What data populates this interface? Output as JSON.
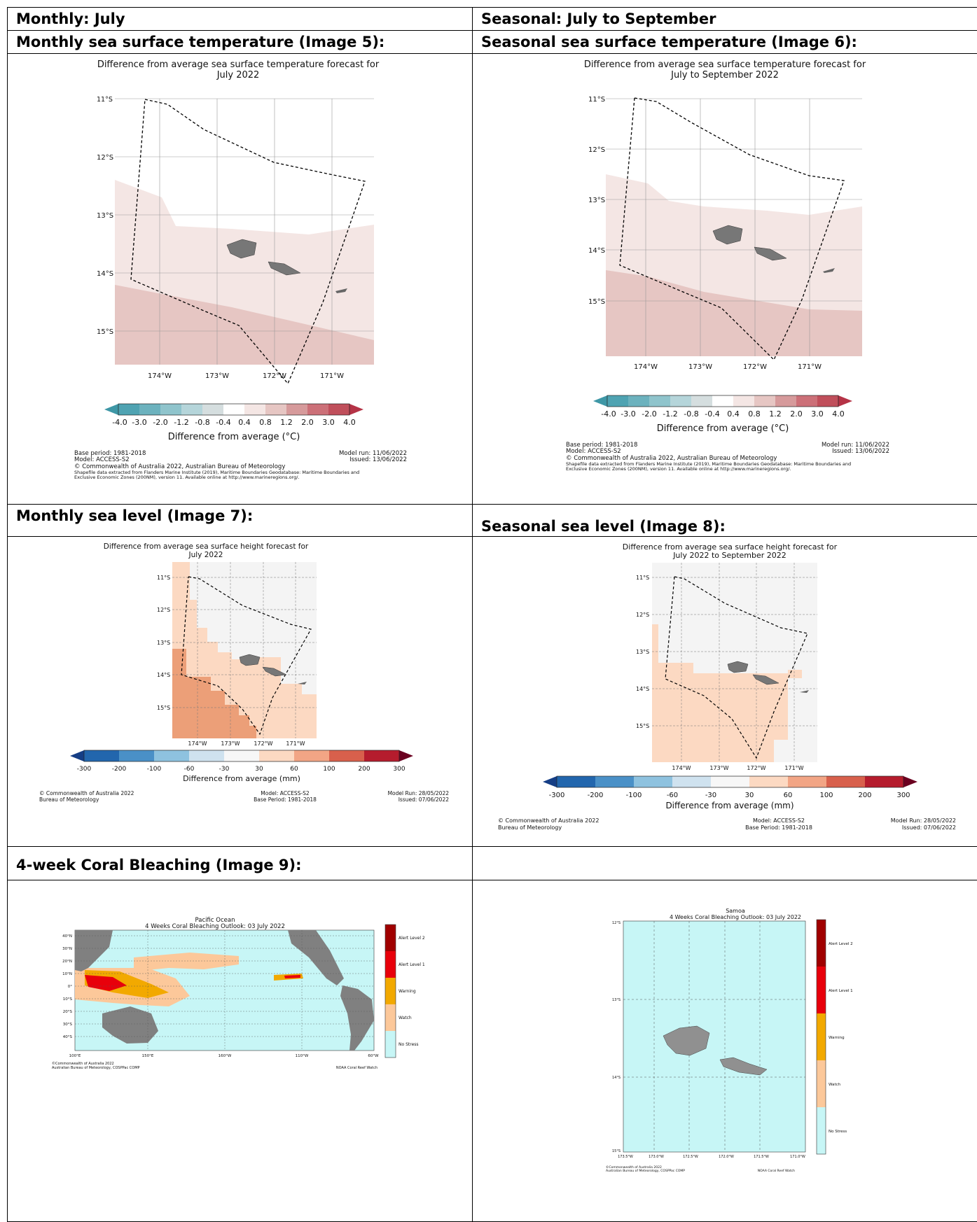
{
  "table": {
    "col1_header": "Monthly: July",
    "col2_header": "Seasonal: July to September",
    "sst_month_label": "Monthly sea surface temperature (Image 5):",
    "sst_season_label": "Seasonal sea surface temperature (Image 6):",
    "sl_month_label": "Monthly sea level (Image 7):",
    "sl_season_label": "Seasonal sea level (Image 8):",
    "coral_label": "4-week Coral Bleaching (Image 9):"
  },
  "image5": {
    "title_line1": "Difference from average sea surface temperature forecast for",
    "title_line2": "July 2022",
    "lat_labels": [
      "11°S",
      "12°S",
      "13°S",
      "14°S",
      "15°S"
    ],
    "lon_labels": [
      "174°W",
      "173°W",
      "172°W",
      "171°W"
    ],
    "colorbar_ticks": [
      "-4.0",
      "-3.0",
      "-2.0",
      "-1.2",
      "-0.8",
      "-0.4",
      "0.4",
      "0.8",
      "1.2",
      "2.0",
      "3.0",
      "4.0"
    ],
    "colorbar_label": "Difference from average (°C)",
    "base_period": "Base period: 1981-2018",
    "model": "Model: ACCESS-S2",
    "model_run": "Model run: 11/06/2022",
    "issued": "Issued: 13/06/2022",
    "copyright": "© Commonwealth of Australia 2022, Australian Bureau of Meteorology",
    "shapefile1": "Shapefile data extracted from Flanders Marine Institute (2019), Maritime Boundaries Geodatabase: Maritime Boundaries and",
    "shapefile2": "Exclusive Economic Zones (200NM), version 11. Available online at http://www.marineregions.org/."
  },
  "image6": {
    "title_line1": "Difference from average sea surface temperature forecast for",
    "title_line2": "July to September 2022",
    "lat_labels": [
      "11°S",
      "12°S",
      "13°S",
      "14°S",
      "15°S"
    ],
    "lon_labels": [
      "174°W",
      "173°W",
      "172°W",
      "171°W"
    ],
    "colorbar_ticks": [
      "-4.0",
      "-3.0",
      "-2.0",
      "-1.2",
      "-0.8",
      "-0.4",
      "0.4",
      "0.8",
      "1.2",
      "2.0",
      "3.0",
      "4.0"
    ],
    "colorbar_label": "Difference from average (°C)",
    "base_period": "Base period: 1981-2018",
    "model": "Model: ACCESS-S2",
    "model_run": "Model run: 11/06/2022",
    "issued": "Issued: 13/06/2022",
    "copyright": "© Commonwealth of Australia 2022, Australian Bureau of Meteorology",
    "shapefile1": "Shapefile data extracted from Flanders Marine Institute (2019), Maritime Boundaries Geodatabase: Maritime Boundaries and",
    "shapefile2": "Exclusive Economic Zones (200NM), version 11. Available online at http://www.marineregions.org/."
  },
  "image7": {
    "title_line1": "Difference from average sea surface height forecast for",
    "title_line2": "July 2022",
    "lat_labels": [
      "11°S",
      "12°S",
      "13°S",
      "14°S",
      "15°S"
    ],
    "lon_labels": [
      "174°W",
      "173°W",
      "172°W",
      "171°W"
    ],
    "colorbar_ticks": [
      "-300",
      "-200",
      "-100",
      "-60",
      "-30",
      "30",
      "60",
      "100",
      "200",
      "300"
    ],
    "colorbar_label": "Difference from average (mm)",
    "copyright1": "© Commonwealth of Australia 2022",
    "copyright2": "Bureau of Meteorology",
    "model": "Model: ACCESS-S2",
    "base_period": "Base Period: 1981-2018",
    "model_run": "Model Run: 28/05/2022",
    "issued": "Issued: 07/06/2022"
  },
  "image8": {
    "title_line1": "Difference from average sea surface height forecast for",
    "title_line2": "July 2022 to September 2022",
    "lat_labels": [
      "11°S",
      "12°S",
      "13°S",
      "14°S",
      "15°S"
    ],
    "lon_labels": [
      "174°W",
      "173°W",
      "172°W",
      "171°W"
    ],
    "colorbar_ticks": [
      "-300",
      "-200",
      "-100",
      "-60",
      "-30",
      "30",
      "60",
      "100",
      "200",
      "300"
    ],
    "colorbar_label": "Difference from average (mm)",
    "copyright1": "© Commonwealth of Australia 2022",
    "copyright2": "Bureau of Meteorology",
    "model": "Model: ACCESS-S2",
    "base_period": "Base Period: 1981-2018",
    "model_run": "Model Run: 28/05/2022",
    "issued": "Issued: 07/06/2022"
  },
  "image9a": {
    "title_line1": "Pacific Ocean",
    "title_line2": "4 Weeks Coral Bleaching Outlook: 03 July 2022",
    "lat_labels": [
      "40°N",
      "30°N",
      "20°N",
      "10°N",
      "0°",
      "10°S",
      "20°S",
      "30°S",
      "40°S"
    ],
    "lon_labels": [
      "100°E",
      "150°E",
      "160°W",
      "110°W",
      "60°W"
    ],
    "legend": [
      "Alert Level 2",
      "Alert Level 1",
      "Warning",
      "Watch",
      "No Stress"
    ],
    "credit1": "©Commonwealth of Australia 2022",
    "credit2": "Australian Bureau of Meteorology, COSPPac COMP",
    "credit3": "NOAA Coral Reef Watch"
  },
  "image9b": {
    "title_line1": "Samoa",
    "title_line2": "4 Weeks Coral Bleaching Outlook: 03 July 2022",
    "lat_labels": [
      "12°S",
      "13°S",
      "14°S",
      "15°S"
    ],
    "lon_labels": [
      "173.5°W",
      "173.0°W",
      "172.5°W",
      "172.0°W",
      "171.5°W",
      "171.0°W"
    ],
    "legend": [
      "Alert Level 2",
      "Alert Level 1",
      "Warning",
      "Watch",
      "No Stress"
    ],
    "credit1": "©Commonwealth of Australia 2022",
    "credit2": "Australian Bureau of Meteorology, COSPPac COMP",
    "credit3": "NOAA Coral Reef Watch"
  },
  "colors": {
    "sst_light": "#f4e6e4",
    "sst_mid": "#e6c6c3",
    "sl_light": "#fcd9c2",
    "sl_mid": "#ec9f78",
    "sl_grey": "#f4f4f4",
    "land": "#808080",
    "coral_sea": "#c7f6f6",
    "coral_watch": "#fcc89a",
    "coral_warning": "#f2a900",
    "coral_alert1": "#e8000b",
    "coral_alert2": "#a00000"
  }
}
